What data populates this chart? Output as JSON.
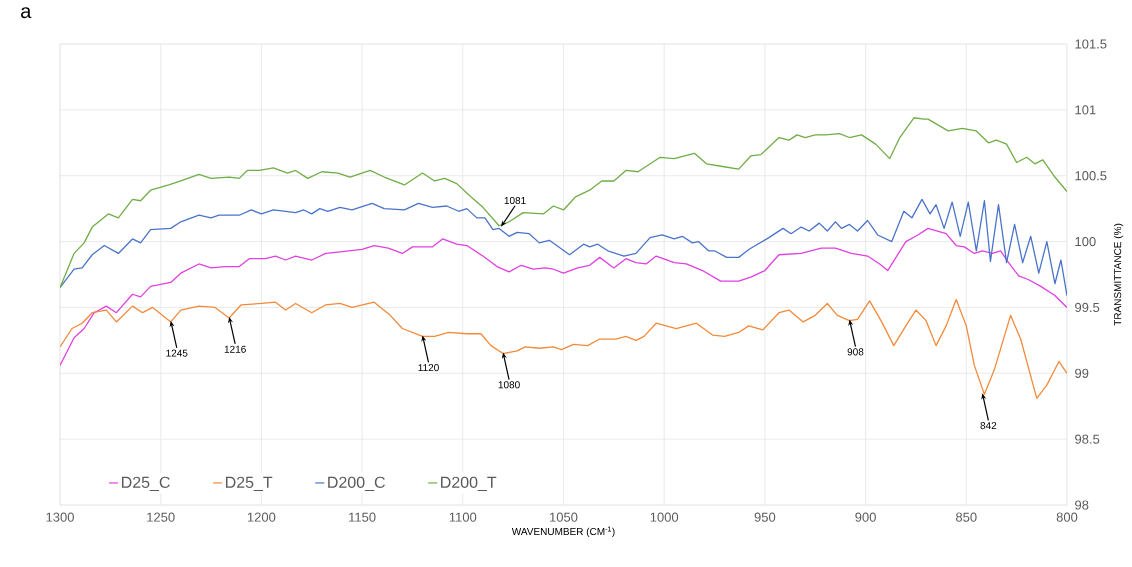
{
  "chart_data": {
    "type": "line",
    "xlabel": "WAVENUMBER (CM$^{-1}$)",
    "ylabel": "TRANSMITTANCE (%)",
    "xlim": [
      1300,
      800
    ],
    "xticks": [
      1300,
      1250,
      1200,
      1150,
      1100,
      1050,
      1000,
      950,
      900,
      850,
      800
    ],
    "ylim": [
      98,
      101.5
    ],
    "yticks": [
      98,
      98.5,
      99,
      99.5,
      100,
      100.5,
      101,
      101.5
    ],
    "grid": true,
    "legend": "bottom",
    "marker": "none",
    "line_style": "solid",
    "series": [
      {
        "name": "D25_C",
        "color": "#e040e0",
        "x": [
          1300,
          1293,
          1288,
          1283,
          1277,
          1272,
          1264,
          1260,
          1255,
          1245,
          1240,
          1231,
          1225,
          1218,
          1211,
          1206,
          1198,
          1193,
          1188,
          1183,
          1175,
          1168,
          1162,
          1150,
          1144,
          1137,
          1130,
          1125,
          1115,
          1110,
          1103,
          1098,
          1090,
          1083,
          1077,
          1071,
          1065,
          1059,
          1055,
          1050,
          1043,
          1037,
          1032,
          1025,
          1019,
          1014,
          1009,
          1004,
          995,
          989,
          981,
          972,
          963,
          957,
          950,
          943,
          932,
          922,
          915,
          907,
          899,
          893,
          889,
          880,
          874,
          869,
          860,
          855,
          851,
          846,
          842,
          837,
          833,
          829,
          824,
          819,
          813,
          806,
          800
        ],
        "values": [
          99.06,
          99.27,
          99.34,
          99.46,
          99.51,
          99.46,
          99.6,
          99.58,
          99.66,
          99.69,
          99.76,
          99.83,
          99.8,
          99.81,
          99.81,
          99.87,
          99.87,
          99.89,
          99.86,
          99.89,
          99.86,
          99.91,
          99.92,
          99.94,
          99.97,
          99.95,
          99.91,
          99.96,
          99.96,
          100.02,
          99.98,
          99.97,
          99.89,
          99.81,
          99.77,
          99.82,
          99.79,
          99.8,
          99.79,
          99.76,
          99.8,
          99.82,
          99.88,
          99.8,
          99.87,
          99.84,
          99.83,
          99.89,
          99.84,
          99.83,
          99.78,
          99.7,
          99.7,
          99.73,
          99.78,
          99.9,
          99.91,
          99.95,
          99.95,
          99.91,
          99.89,
          99.83,
          99.78,
          100.0,
          100.05,
          100.1,
          100.06,
          99.97,
          99.96,
          99.91,
          99.93,
          99.91,
          99.93,
          99.84,
          99.74,
          99.71,
          99.66,
          99.59,
          99.5
        ]
      },
      {
        "name": "D25_T",
        "color": "#f28a3b",
        "x": [
          1300,
          1294,
          1289,
          1284,
          1277,
          1272,
          1264,
          1259,
          1254,
          1245,
          1240,
          1231,
          1223,
          1216,
          1210,
          1200,
          1193,
          1188,
          1183,
          1175,
          1168,
          1161,
          1155,
          1144,
          1136,
          1130,
          1120,
          1114,
          1107,
          1098,
          1091,
          1086,
          1080,
          1073,
          1069,
          1062,
          1055,
          1051,
          1045,
          1038,
          1032,
          1024,
          1019,
          1014,
          1010,
          1004,
          994,
          984,
          976,
          970,
          963,
          958,
          951,
          943,
          938,
          931,
          925,
          919,
          914,
          908,
          904,
          898,
          892,
          886,
          880,
          875,
          870,
          865,
          860,
          855,
          850,
          846,
          841,
          836,
          828,
          823,
          815,
          810,
          804,
          800
        ],
        "values": [
          99.2,
          99.34,
          99.38,
          99.46,
          99.48,
          99.39,
          99.51,
          99.46,
          99.5,
          99.39,
          99.48,
          99.51,
          99.5,
          99.42,
          99.52,
          99.53,
          99.54,
          99.48,
          99.53,
          99.46,
          99.52,
          99.53,
          99.5,
          99.54,
          99.44,
          99.34,
          99.28,
          99.28,
          99.31,
          99.3,
          99.3,
          99.21,
          99.15,
          99.17,
          99.2,
          99.19,
          99.2,
          99.18,
          99.22,
          99.21,
          99.26,
          99.26,
          99.28,
          99.25,
          99.28,
          99.38,
          99.34,
          99.38,
          99.29,
          99.28,
          99.31,
          99.36,
          99.33,
          99.46,
          99.48,
          99.39,
          99.44,
          99.53,
          99.44,
          99.4,
          99.41,
          99.55,
          99.39,
          99.21,
          99.36,
          99.48,
          99.4,
          99.21,
          99.36,
          99.56,
          99.36,
          99.06,
          98.84,
          99.03,
          99.44,
          99.26,
          98.81,
          98.91,
          99.09,
          99.0
        ]
      },
      {
        "name": "D200_C",
        "color": "#4a74c9",
        "x": [
          1300,
          1293,
          1289,
          1284,
          1278,
          1271,
          1264,
          1260,
          1255,
          1245,
          1240,
          1231,
          1225,
          1221,
          1211,
          1205,
          1200,
          1194,
          1183,
          1179,
          1175,
          1171,
          1167,
          1161,
          1155,
          1145,
          1139,
          1129,
          1122,
          1115,
          1108,
          1102,
          1098,
          1093,
          1089,
          1085,
          1082,
          1077,
          1073,
          1067,
          1062,
          1057,
          1047,
          1040,
          1037,
          1033,
          1028,
          1020,
          1014,
          1007,
          1001,
          995,
          991,
          986,
          983,
          978,
          975,
          969,
          963,
          958,
          948,
          941,
          937,
          932,
          928,
          923,
          919,
          915,
          912,
          908,
          904,
          899,
          894,
          887,
          881,
          877,
          872,
          868,
          865,
          861,
          857,
          853,
          849,
          845,
          841,
          838,
          834,
          830,
          826,
          822,
          818,
          814,
          810,
          806,
          803,
          800
        ],
        "values": [
          99.65,
          99.79,
          99.8,
          99.9,
          99.97,
          99.91,
          100.02,
          99.99,
          100.09,
          100.1,
          100.15,
          100.2,
          100.18,
          100.2,
          100.2,
          100.24,
          100.21,
          100.24,
          100.22,
          100.24,
          100.21,
          100.25,
          100.23,
          100.26,
          100.24,
          100.29,
          100.25,
          100.24,
          100.29,
          100.26,
          100.27,
          100.23,
          100.25,
          100.18,
          100.18,
          100.09,
          100.1,
          100.04,
          100.07,
          100.06,
          99.99,
          100.01,
          99.9,
          99.98,
          99.96,
          99.98,
          99.93,
          99.89,
          99.91,
          100.03,
          100.05,
          100.02,
          100.04,
          99.99,
          100.0,
          99.93,
          99.93,
          99.88,
          99.88,
          99.94,
          100.03,
          100.1,
          100.06,
          100.11,
          100.08,
          100.14,
          100.08,
          100.15,
          100.1,
          100.13,
          100.08,
          100.16,
          100.05,
          100.0,
          100.23,
          100.18,
          100.32,
          100.21,
          100.28,
          100.1,
          100.3,
          100.04,
          100.3,
          99.93,
          100.31,
          99.85,
          100.28,
          99.84,
          100.13,
          99.84,
          100.04,
          99.76,
          100.0,
          99.68,
          99.86,
          99.59
        ]
      },
      {
        "name": "D200_T",
        "color": "#70ad47",
        "x": [
          1300,
          1293,
          1288,
          1284,
          1276,
          1271,
          1264,
          1260,
          1255,
          1246,
          1240,
          1231,
          1225,
          1216,
          1211,
          1207,
          1201,
          1194,
          1187,
          1183,
          1177,
          1170,
          1162,
          1156,
          1146,
          1139,
          1129,
          1120,
          1114,
          1109,
          1103,
          1096,
          1090,
          1082,
          1077,
          1070,
          1060,
          1055,
          1050,
          1044,
          1037,
          1031,
          1025,
          1019,
          1013,
          1002,
          995,
          985,
          979,
          971,
          963,
          957,
          952,
          943,
          938,
          934,
          930,
          925,
          920,
          913,
          908,
          902,
          895,
          888,
          883,
          876,
          871,
          869,
          859,
          852,
          845,
          839,
          835,
          830,
          825,
          820,
          816,
          812,
          806,
          800
        ],
        "values": [
          99.65,
          99.91,
          99.99,
          100.11,
          100.21,
          100.18,
          100.32,
          100.31,
          100.39,
          100.43,
          100.46,
          100.51,
          100.48,
          100.49,
          100.48,
          100.54,
          100.54,
          100.56,
          100.52,
          100.54,
          100.48,
          100.53,
          100.52,
          100.49,
          100.54,
          100.49,
          100.43,
          100.52,
          100.46,
          100.48,
          100.44,
          100.34,
          100.26,
          100.12,
          100.15,
          100.22,
          100.21,
          100.27,
          100.24,
          100.34,
          100.39,
          100.46,
          100.46,
          100.54,
          100.53,
          100.64,
          100.63,
          100.67,
          100.59,
          100.57,
          100.55,
          100.65,
          100.66,
          100.79,
          100.77,
          100.81,
          100.79,
          100.81,
          100.81,
          100.82,
          100.79,
          100.81,
          100.74,
          100.63,
          100.79,
          100.94,
          100.93,
          100.93,
          100.84,
          100.86,
          100.84,
          100.75,
          100.77,
          100.74,
          100.6,
          100.64,
          100.59,
          100.62,
          100.49,
          100.38
        ]
      }
    ],
    "annotations": [
      "a",
      {
        "text": "1245",
        "x": 1245,
        "y": 99.39
      },
      {
        "text": "1216",
        "x": 1216,
        "y": 99.42
      },
      {
        "text": "1120",
        "x": 1120,
        "y": 99.28
      },
      {
        "text": "1080",
        "x": 1080,
        "y": 99.15
      },
      {
        "text": "1081",
        "x": 1081,
        "y": 100.12
      },
      {
        "text": "908",
        "x": 908,
        "y": 99.4
      },
      {
        "text": "842",
        "x": 842,
        "y": 98.84
      }
    ]
  }
}
